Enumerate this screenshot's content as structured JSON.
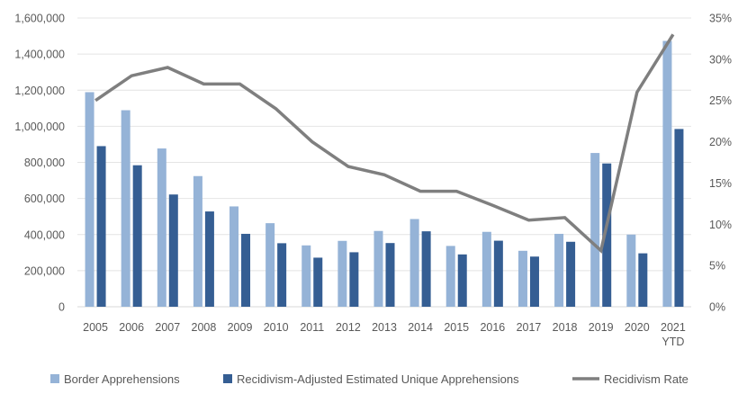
{
  "chart_data": {
    "type": "bar",
    "categories": [
      "2005",
      "2006",
      "2007",
      "2008",
      "2009",
      "2010",
      "2011",
      "2012",
      "2013",
      "2014",
      "2015",
      "2016",
      "2017",
      "2018",
      "2019",
      "2020",
      "2021 YTD"
    ],
    "series": [
      {
        "name": "Border Apprehensions",
        "kind": "bar",
        "axis": "left",
        "color": "#95B3D7",
        "values": [
          1189000,
          1089000,
          877000,
          724000,
          556000,
          463000,
          340000,
          365000,
          420000,
          486000,
          337000,
          415000,
          310000,
          404000,
          852000,
          400000,
          1473000
        ]
      },
      {
        "name": "Recidivism-Adjusted Estimated Unique Apprehensions",
        "kind": "bar",
        "axis": "left",
        "color": "#355E93",
        "values": [
          890000,
          784000,
          622000,
          528000,
          404000,
          352000,
          272000,
          302000,
          353000,
          418000,
          290000,
          366000,
          278000,
          360000,
          794000,
          296000,
          985000
        ]
      },
      {
        "name": "Recidivism Rate",
        "kind": "line",
        "axis": "right",
        "color": "#7F7F7F",
        "values": [
          25,
          28,
          29,
          27,
          27,
          24,
          20,
          17,
          16,
          14,
          14,
          12.3,
          10.5,
          10.8,
          6.8,
          26,
          33
        ]
      }
    ],
    "yleft": {
      "min": 0,
      "max": 1600000,
      "step": 200000,
      "ticks": [
        "0",
        "200,000",
        "400,000",
        "600,000",
        "800,000",
        "1,000,000",
        "1,200,000",
        "1,400,000",
        "1,600,000"
      ]
    },
    "yright": {
      "min": 0,
      "max": 35,
      "step": 5,
      "ticks": [
        "0%",
        "5%",
        "10%",
        "15%",
        "20%",
        "25%",
        "30%",
        "35%"
      ]
    },
    "title": "",
    "xlabel": "",
    "ylabel": "",
    "grid": true,
    "legend_position": "bottom"
  }
}
